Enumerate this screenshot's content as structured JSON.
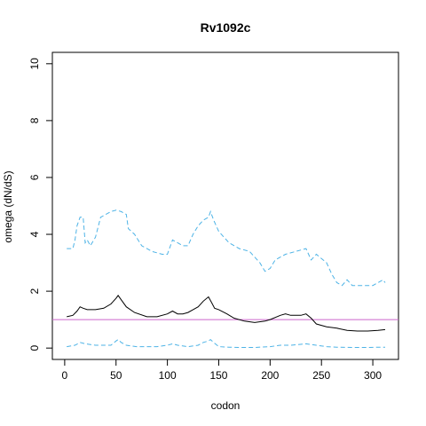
{
  "chart_data": {
    "type": "line",
    "title": "Rv1092c",
    "xlabel": "codon",
    "ylabel": "omega (dN/dS)",
    "xlim": [
      -12,
      325
    ],
    "ylim": [
      -0.4,
      10.4
    ],
    "x_ticks": [
      0,
      50,
      100,
      150,
      200,
      250,
      300
    ],
    "y_ticks": [
      0,
      2,
      4,
      6,
      8,
      10
    ],
    "grid": false,
    "reference_line": {
      "y": 1,
      "color": "#cc66cc"
    },
    "series": [
      {
        "style": "solid",
        "color": "#000000",
        "x": [
          2,
          8,
          12,
          15,
          18,
          22,
          30,
          38,
          45,
          50,
          52,
          55,
          60,
          68,
          80,
          90,
          100,
          105,
          110,
          115,
          120,
          125,
          130,
          135,
          140,
          143,
          146,
          150,
          158,
          165,
          175,
          185,
          195,
          200,
          210,
          215,
          220,
          230,
          235,
          240,
          245,
          255,
          265,
          275,
          285,
          295,
          305,
          312
        ],
        "y": [
          1.1,
          1.15,
          1.3,
          1.45,
          1.4,
          1.35,
          1.35,
          1.4,
          1.55,
          1.75,
          1.85,
          1.7,
          1.45,
          1.25,
          1.1,
          1.1,
          1.2,
          1.3,
          1.2,
          1.2,
          1.25,
          1.35,
          1.45,
          1.65,
          1.8,
          1.6,
          1.4,
          1.35,
          1.2,
          1.05,
          0.95,
          0.9,
          0.95,
          1.0,
          1.15,
          1.2,
          1.15,
          1.15,
          1.2,
          1.05,
          0.85,
          0.75,
          0.7,
          0.62,
          0.6,
          0.6,
          0.62,
          0.65
        ]
      },
      {
        "style": "dashed",
        "color": "#4db3e6",
        "x": [
          2,
          8,
          10,
          12,
          15,
          18,
          20,
          22,
          25,
          30,
          35,
          40,
          45,
          50,
          55,
          60,
          62,
          68,
          75,
          80,
          85,
          95,
          100,
          105,
          110,
          115,
          120,
          125,
          130,
          135,
          140,
          142,
          145,
          150,
          160,
          170,
          180,
          185,
          190,
          195,
          200,
          205,
          215,
          225,
          235,
          240,
          245,
          255,
          260,
          265,
          270,
          275,
          280,
          290,
          300,
          310,
          312
        ],
        "y": [
          3.5,
          3.5,
          3.8,
          4.3,
          4.6,
          4.6,
          3.7,
          3.8,
          3.6,
          3.9,
          4.6,
          4.7,
          4.8,
          4.85,
          4.8,
          4.7,
          4.2,
          4.0,
          3.6,
          3.5,
          3.4,
          3.3,
          3.3,
          3.8,
          3.7,
          3.6,
          3.6,
          4.0,
          4.3,
          4.5,
          4.6,
          4.8,
          4.5,
          4.1,
          3.7,
          3.5,
          3.4,
          3.2,
          3.0,
          2.7,
          2.8,
          3.1,
          3.3,
          3.4,
          3.5,
          3.1,
          3.3,
          3.0,
          2.6,
          2.3,
          2.2,
          2.4,
          2.2,
          2.2,
          2.2,
          2.4,
          2.3
        ]
      },
      {
        "style": "dashed",
        "color": "#4db3e6",
        "x": [
          2,
          10,
          15,
          20,
          30,
          45,
          50,
          52,
          55,
          60,
          70,
          80,
          90,
          100,
          105,
          110,
          120,
          130,
          135,
          140,
          142,
          145,
          150,
          160,
          170,
          185,
          200,
          210,
          220,
          235,
          245,
          255,
          265,
          280,
          295,
          305,
          312
        ],
        "y": [
          0.05,
          0.1,
          0.2,
          0.15,
          0.1,
          0.1,
          0.25,
          0.3,
          0.2,
          0.1,
          0.05,
          0.05,
          0.05,
          0.1,
          0.15,
          0.1,
          0.05,
          0.1,
          0.2,
          0.25,
          0.3,
          0.2,
          0.05,
          0.03,
          0.02,
          0.02,
          0.05,
          0.1,
          0.1,
          0.15,
          0.1,
          0.05,
          0.03,
          0.02,
          0.02,
          0.03,
          0.03
        ]
      }
    ]
  }
}
